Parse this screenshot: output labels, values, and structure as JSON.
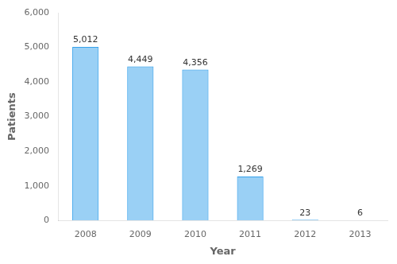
{
  "chart_data": {
    "type": "bar",
    "categories": [
      "2008",
      "2009",
      "2010",
      "2011",
      "2012",
      "2013"
    ],
    "values": [
      5012,
      4449,
      4356,
      1269,
      23,
      6
    ],
    "value_labels": [
      "5,012",
      "4,449",
      "4,356",
      "1,269",
      "23",
      "6"
    ],
    "data_labels": true,
    "xlabel": "Year",
    "ylabel": "Patients",
    "ylim": [
      0,
      6000
    ],
    "yticks": [
      0,
      {
        "value": 1000,
        "label": "1,000"
      },
      {
        "value": 2000,
        "label": "2,000"
      },
      {
        "value": 3000,
        "label": "3,000"
      },
      {
        "value": 4000,
        "label": "4,000"
      },
      {
        "value": 5000,
        "label": "5,000"
      },
      {
        "value": 6000,
        "label": "6,000"
      }
    ],
    "grid": false
  }
}
